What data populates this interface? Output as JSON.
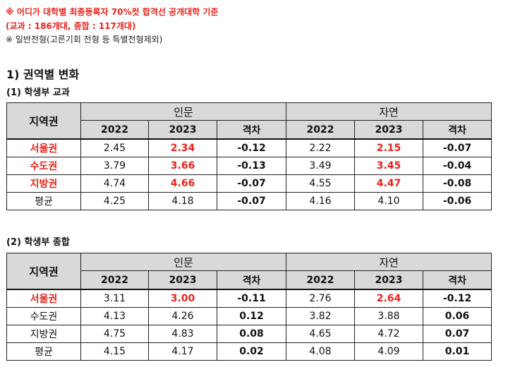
{
  "notes": {
    "line1": "※ 어디가 대학별 최종등록자 70%컷 합격선 공개대학 기준",
    "line2": "(교과 : 186개대, 종합 : 117개대)",
    "line3": "※ 일반전형(고른기회 전형 등 특별전형제외)"
  },
  "section_title": "1) 권역별 변화",
  "tables": [
    {
      "subtitle": "(1) 학생부 교과",
      "header": {
        "region": "지역권",
        "group1": "인문",
        "group2": "자연",
        "cols": [
          "2022",
          "2023",
          "격차",
          "2022",
          "2023",
          "격차"
        ]
      },
      "rows": [
        {
          "label": "서울권",
          "values": [
            "2.45",
            "2.34",
            "-0.12",
            "2.22",
            "2.15",
            "-0.07"
          ]
        },
        {
          "label": "수도권",
          "values": [
            "3.79",
            "3.66",
            "-0.13",
            "3.49",
            "3.45",
            "-0.04"
          ]
        },
        {
          "label": "지방권",
          "values": [
            "4.74",
            "4.66",
            "-0.07",
            "4.55",
            "4.47",
            "-0.08"
          ]
        },
        {
          "label": "평균",
          "values": [
            "4.25",
            "4.18",
            "-0.07",
            "4.16",
            "4.10",
            "-0.06"
          ]
        }
      ]
    },
    {
      "subtitle": "(2) 학생부 종합",
      "header": {
        "region": "지역권",
        "group1": "인문",
        "group2": "자연",
        "cols": [
          "2022",
          "2023",
          "격차",
          "2022",
          "2023",
          "격차"
        ]
      },
      "rows": [
        {
          "label": "서울권",
          "values": [
            "3.11",
            "3.00",
            "-0.11",
            "2.76",
            "2.64",
            "-0.12"
          ]
        },
        {
          "label": "수도권",
          "values": [
            "4.13",
            "4.26",
            "0.12",
            "3.82",
            "3.88",
            "0.06"
          ]
        },
        {
          "label": "지방권",
          "values": [
            "4.75",
            "4.83",
            "0.08",
            "4.65",
            "4.72",
            "0.07"
          ]
        },
        {
          "label": "평균",
          "values": [
            "4.15",
            "4.17",
            "0.02",
            "4.08",
            "4.09",
            "0.01"
          ]
        }
      ]
    }
  ],
  "colors": {
    "highlight": "#e8231b",
    "header_bg": "#d9d9d9"
  }
}
